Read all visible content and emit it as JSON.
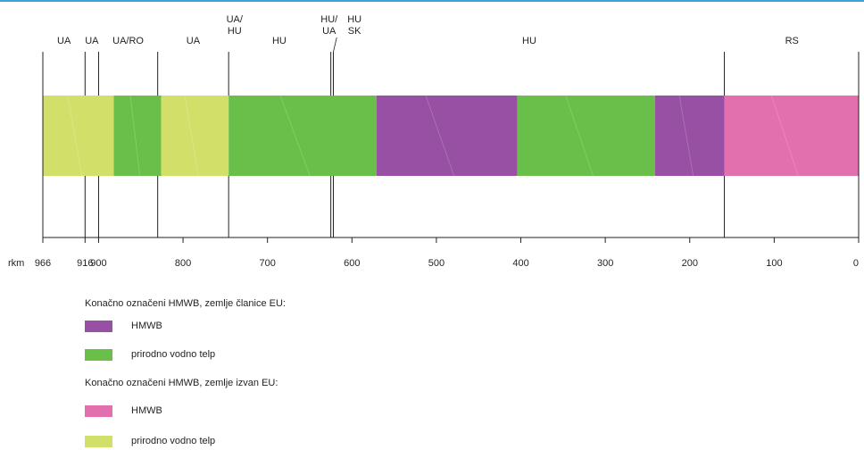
{
  "colors": {
    "hmwb_eu": "#9850a5",
    "natural_eu": "#6abf4b",
    "hmwb_non_eu": "#e26fae",
    "natural_non_eu": "#d2e06a",
    "line": "#231f20",
    "accent_rule": "#3aa6d8"
  },
  "axis": {
    "unit_label": "rkm",
    "range": [
      966,
      0
    ],
    "ticks": [
      966,
      916,
      900,
      800,
      700,
      600,
      500,
      400,
      300,
      200,
      100,
      0
    ]
  },
  "country_boundaries": [
    916,
    900,
    830,
    746,
    625,
    622,
    159
  ],
  "country_labels": [
    {
      "text": "UA",
      "rkm": 941
    },
    {
      "text": "UA",
      "rkm": 908
    },
    {
      "text": "UA/RO",
      "rkm": 865
    },
    {
      "text": "UA",
      "rkm": 788
    },
    {
      "text": [
        "UA/",
        "HU"
      ],
      "rkm": 739
    },
    {
      "text": "HU",
      "rkm": 686
    },
    {
      "text": [
        "HU/",
        "UA"
      ],
      "rkm": 627
    },
    {
      "text": [
        "HU",
        "SK"
      ],
      "rkm": 597
    },
    {
      "text": "HU",
      "rkm": 390
    },
    {
      "text": "RS",
      "rkm": 79
    }
  ],
  "segments": [
    {
      "from": 966,
      "to": 882,
      "category": "natural_non_eu"
    },
    {
      "from": 882,
      "to": 826,
      "category": "natural_eu"
    },
    {
      "from": 826,
      "to": 746,
      "category": "natural_non_eu"
    },
    {
      "from": 746,
      "to": 571,
      "category": "natural_eu"
    },
    {
      "from": 571,
      "to": 404,
      "category": "hmwb_eu"
    },
    {
      "from": 404,
      "to": 241,
      "category": "natural_eu"
    },
    {
      "from": 241,
      "to": 159,
      "category": "hmwb_eu"
    },
    {
      "from": 159,
      "to": 0,
      "category": "hmwb_non_eu"
    }
  ],
  "legend": {
    "eu_heading": "Konačno označeni HMWB, zemlje članice EU:",
    "eu_items": [
      {
        "label": "HMWB",
        "category": "hmwb_eu"
      },
      {
        "label": "prirodno vodno telp",
        "category": "natural_eu"
      }
    ],
    "non_eu_heading": "Konačno označeni HMWB, zemlje izvan EU:",
    "non_eu_items": [
      {
        "label": "HMWB",
        "category": "hmwb_non_eu"
      },
      {
        "label": "prirodno vodno telp",
        "category": "natural_non_eu"
      }
    ]
  }
}
